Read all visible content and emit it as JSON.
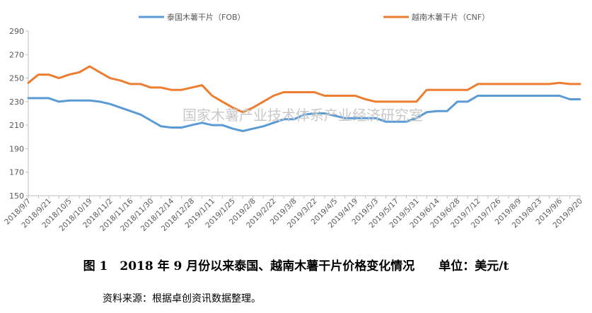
{
  "chart_data": {
    "type": "line",
    "ylim": [
      150,
      290
    ],
    "yticks": [
      150,
      170,
      190,
      210,
      230,
      250,
      270,
      290
    ],
    "grid": false,
    "legend_position": "top",
    "x": [
      "2018/9/7",
      "2018/9/14",
      "2018/9/21",
      "2018/9/28",
      "2018/10/5",
      "2018/10/12",
      "2018/10/19",
      "2018/10/26",
      "2018/11/2",
      "2018/11/9",
      "2018/11/16",
      "2018/11/23",
      "2018/11/30",
      "2018/12/7",
      "2018/12/14",
      "2018/12/21",
      "2018/12/28",
      "2019/1/4",
      "2019/1/11",
      "2019/1/18",
      "2019/1/25",
      "2019/2/1",
      "2019/2/8",
      "2019/2/15",
      "2019/2/22",
      "2019/3/1",
      "2019/3/8",
      "2019/3/15",
      "2019/3/22",
      "2019/3/29",
      "2019/4/5",
      "2019/4/12",
      "2019/4/19",
      "2019/4/26",
      "2019/5/3",
      "2019/5/10",
      "2019/5/17",
      "2019/5/24",
      "2019/5/31",
      "2019/6/7",
      "2019/6/14",
      "2019/6/21",
      "2019/6/28",
      "2019/7/5",
      "2019/7/12",
      "2019/7/19",
      "2019/7/26",
      "2019/8/2",
      "2019/8/9",
      "2019/8/16",
      "2019/8/23",
      "2019/8/30",
      "2019/9/6",
      "2019/9/13",
      "2019/9/20"
    ],
    "x_tick_labels": [
      "2018/9/7",
      "2018/9/21",
      "2018/10/5",
      "2018/10/19",
      "2018/11/2",
      "2018/11/16",
      "2018/11/30",
      "2018/12/14",
      "2018/12/28",
      "2019/1/11",
      "2019/1/25",
      "2019/2/8",
      "2019/2/22",
      "2019/3/8",
      "2019/3/22",
      "2019/4/5",
      "2019/4/19",
      "2019/5/3",
      "2019/5/17",
      "2019/5/31",
      "2019/6/14",
      "2019/6/28",
      "2019/7/12",
      "2019/7/26",
      "2019/8/9",
      "2019/8/23",
      "2019/9/6",
      "2019/9/20"
    ],
    "series": [
      {
        "name": "泰国木薯干片（FOB）",
        "color": "#5b9bd5",
        "values": [
          233,
          233,
          233,
          230,
          231,
          231,
          231,
          230,
          228,
          225,
          222,
          219,
          214,
          209,
          208,
          208,
          210,
          212,
          210,
          210,
          207,
          205,
          207,
          209,
          212,
          215,
          215,
          219,
          220,
          220,
          218,
          216,
          216,
          216,
          216,
          213,
          213,
          213,
          216,
          221,
          222,
          222,
          230,
          230,
          235,
          235,
          235,
          235,
          235,
          235,
          235,
          235,
          235,
          232,
          232
        ]
      },
      {
        "name": "越南木薯干片（CNF）",
        "color": "#ed7d31",
        "values": [
          246,
          253,
          253,
          250,
          253,
          255,
          260,
          255,
          250,
          248,
          245,
          245,
          242,
          242,
          240,
          240,
          242,
          244,
          235,
          230,
          225,
          221,
          225,
          230,
          235,
          238,
          238,
          238,
          238,
          235,
          235,
          235,
          235,
          232,
          230,
          230,
          230,
          230,
          230,
          240,
          240,
          240,
          240,
          240,
          245,
          245,
          245,
          245,
          245,
          245,
          245,
          245,
          246,
          245,
          245
        ]
      }
    ]
  },
  "watermark": "国家木薯产业技术体系产业经济研究室",
  "caption": "图 1　2018 年 9 月份以来泰国、越南木薯干片价格变化情况　　单位：美元/t",
  "source": "资料来源：根据卓创资讯数据整理。",
  "colors": {
    "axis": "#bfbfbf",
    "tick_text": "#595959",
    "watermark": "#c8c8c8"
  }
}
